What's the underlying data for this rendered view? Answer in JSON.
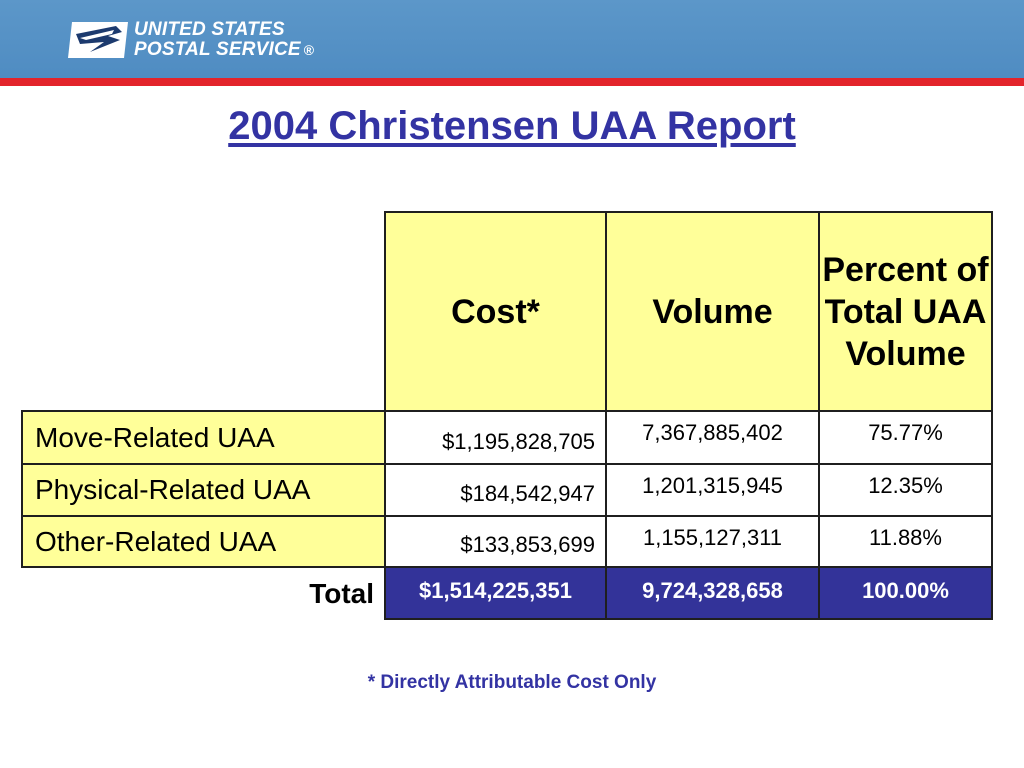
{
  "header": {
    "logo_line1": "UNITED STATES",
    "logo_line2": "POSTAL SERVICE",
    "logo_reg": "®",
    "logo_icon": "eagle-icon"
  },
  "title": "2004 Christensen UAA Report",
  "table": {
    "columns": [
      "Cost*",
      "Volume",
      "Percent of Total UAA Volume"
    ],
    "rows": [
      {
        "label": "Move-Related UAA",
        "cost": "$1,195,828,705",
        "volume": "7,367,885,402",
        "percent": "75.77%"
      },
      {
        "label": "Physical-Related UAA",
        "cost": "$184,542,947",
        "volume": "1,201,315,945",
        "percent": "12.35%"
      },
      {
        "label": "Other-Related UAA",
        "cost": "$133,853,699",
        "volume": "1,155,127,311",
        "percent": "11.88%"
      }
    ],
    "total": {
      "label": "Total",
      "cost": "$1,514,225,351",
      "volume": "9,724,328,658",
      "percent": "100.00%"
    }
  },
  "footnote": "* Directly Attributable Cost Only",
  "colors": {
    "header_blue": "#4f8cc2",
    "header_red": "#e3242b",
    "title_blue": "#3333a3",
    "cell_yellow": "#ffff99",
    "total_navy": "#333399"
  }
}
